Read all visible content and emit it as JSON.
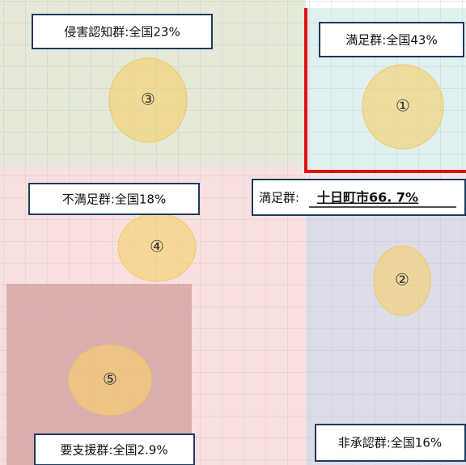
{
  "groups": [
    {
      "number": "③",
      "label": "侵害認知群:全国23%"
    },
    {
      "number": "①",
      "label": "満足群:全国43%"
    },
    {
      "number": "④",
      "label": "不満足群:全国18%"
    },
    {
      "number": "②",
      "label": "非承認群:全国16%"
    },
    {
      "number": "⑤",
      "label": "要支援群:全国2.9%"
    }
  ],
  "highlight": {
    "prefix": "満足群:",
    "value": "十日町市66. 7%"
  }
}
